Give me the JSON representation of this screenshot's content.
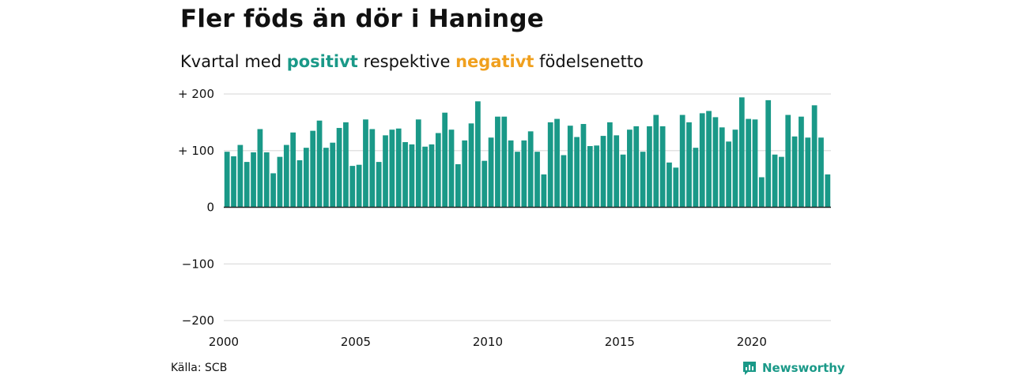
{
  "title": "Fler föds än dör i Haninge",
  "subtitle": {
    "prefix": "Kvartal med",
    "positive": "positivt",
    "middle": "respektive",
    "negative": "negativt",
    "suffix": "födelsenetto"
  },
  "source": "Källa: SCB",
  "brand": "Newsworthy",
  "colors": {
    "positive": "#1a9988",
    "negative": "#f0a01e",
    "grid": "#dddddd",
    "zero": "#222222"
  },
  "chart_data": {
    "type": "bar",
    "xlabel": "",
    "ylabel": "",
    "xlim": [
      2000,
      2023
    ],
    "ylim": [
      -200,
      200
    ],
    "y_ticks": [
      {
        "value": 200,
        "label": "+ 200"
      },
      {
        "value": 100,
        "label": "+ 100"
      },
      {
        "value": 0,
        "label": "0"
      },
      {
        "value": -100,
        "label": "−100"
      },
      {
        "value": -200,
        "label": "−200"
      }
    ],
    "x_ticks": [
      {
        "value": 2000,
        "label": "2000"
      },
      {
        "value": 2005,
        "label": "2005"
      },
      {
        "value": 2010,
        "label": "2010"
      },
      {
        "value": 2015,
        "label": "2015"
      },
      {
        "value": 2020,
        "label": "2020"
      }
    ],
    "start_year": 2000,
    "values": [
      98,
      90,
      110,
      80,
      97,
      138,
      97,
      60,
      89,
      110,
      132,
      83,
      105,
      135,
      153,
      105,
      114,
      140,
      150,
      73,
      75,
      155,
      138,
      80,
      127,
      137,
      139,
      115,
      111,
      155,
      107,
      111,
      131,
      167,
      137,
      76,
      118,
      148,
      187,
      82,
      123,
      160,
      160,
      118,
      98,
      118,
      134,
      98,
      58,
      150,
      156,
      92,
      144,
      124,
      147,
      108,
      109,
      126,
      150,
      127,
      93,
      137,
      143,
      98,
      143,
      163,
      143,
      79,
      70,
      163,
      150,
      105,
      166,
      170,
      159,
      141,
      116,
      137,
      194,
      156,
      155,
      53,
      189,
      93,
      89,
      163,
      125,
      160,
      123,
      180,
      123,
      58
    ]
  }
}
